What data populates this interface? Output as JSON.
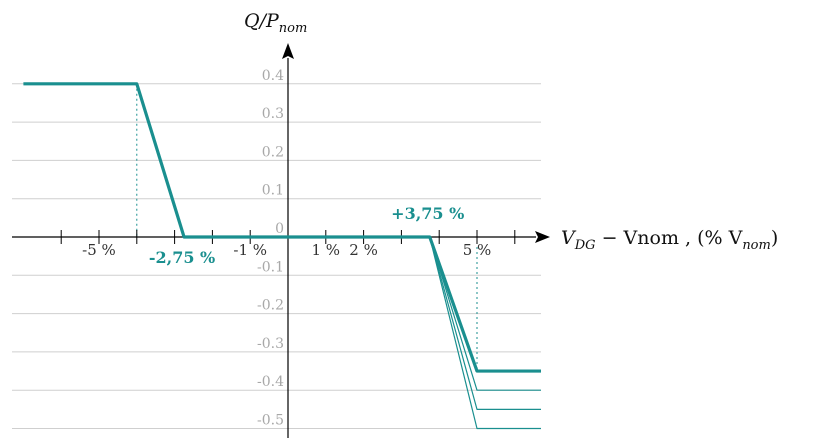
{
  "chart_data": {
    "type": "line",
    "xlabel": {
      "main": "V",
      "sub1": "DG",
      "mid": " − Vnom , (% V",
      "sub2": "nom",
      "end": ")"
    },
    "ylabel": {
      "main": "Q/P",
      "sub": "nom"
    },
    "xlim": [
      -6.25,
      7
    ],
    "ylim": [
      -0.5,
      0.4
    ],
    "grid": "horizontal",
    "y_ticks": [
      0.4,
      0.3,
      0.2,
      0.1,
      0,
      -0.1,
      -0.2,
      -0.3,
      -0.4,
      -0.5
    ],
    "y_tick_labels": [
      "0.4",
      "0.3",
      "0.2",
      "0.1",
      "0",
      "-0.1",
      "-0.2",
      "-0.3",
      "-0.4",
      "-0.5"
    ],
    "x_ticks": [
      -6,
      -5,
      -4,
      -3,
      -2,
      -1,
      0,
      1,
      2,
      3,
      4,
      5,
      6
    ],
    "x_tick_labels": [
      {
        "value": -5,
        "text": "-5 %"
      },
      {
        "value": -1,
        "text": "-1 %"
      },
      {
        "value": 1,
        "text": "1 %"
      },
      {
        "value": 2,
        "text": "2 %"
      },
      {
        "value": 5,
        "text": "5 %"
      }
    ],
    "series": [
      {
        "style": "main",
        "points": [
          [
            -7,
            0.4
          ],
          [
            -4,
            0.4
          ],
          [
            -2.75,
            0
          ],
          [
            3.75,
            0
          ],
          [
            5,
            -0.35
          ],
          [
            7,
            -0.35
          ]
        ]
      },
      {
        "style": "thin",
        "points": [
          [
            3.75,
            0
          ],
          [
            5,
            -0.4
          ],
          [
            7,
            -0.4
          ]
        ]
      },
      {
        "style": "thin",
        "points": [
          [
            3.75,
            0
          ],
          [
            5,
            -0.45
          ],
          [
            7,
            -0.45
          ]
        ]
      },
      {
        "style": "thin",
        "points": [
          [
            3.75,
            0
          ],
          [
            5,
            -0.5
          ],
          [
            7,
            -0.5
          ]
        ]
      }
    ],
    "guides": [
      {
        "x": -4,
        "from": 0.4,
        "to": 0
      },
      {
        "x": 5,
        "from": 0,
        "to": -0.35
      }
    ],
    "annotations": [
      {
        "text": "-2,75 %",
        "x": -2.75,
        "y": 0,
        "anchor": "below"
      },
      {
        "text": "+3,75 %",
        "x": 3.75,
        "y": 0,
        "anchor": "above"
      }
    ],
    "colors": {
      "line": "#1a8f8f",
      "grid": "#cfcfcf",
      "axis": "#000000"
    }
  }
}
